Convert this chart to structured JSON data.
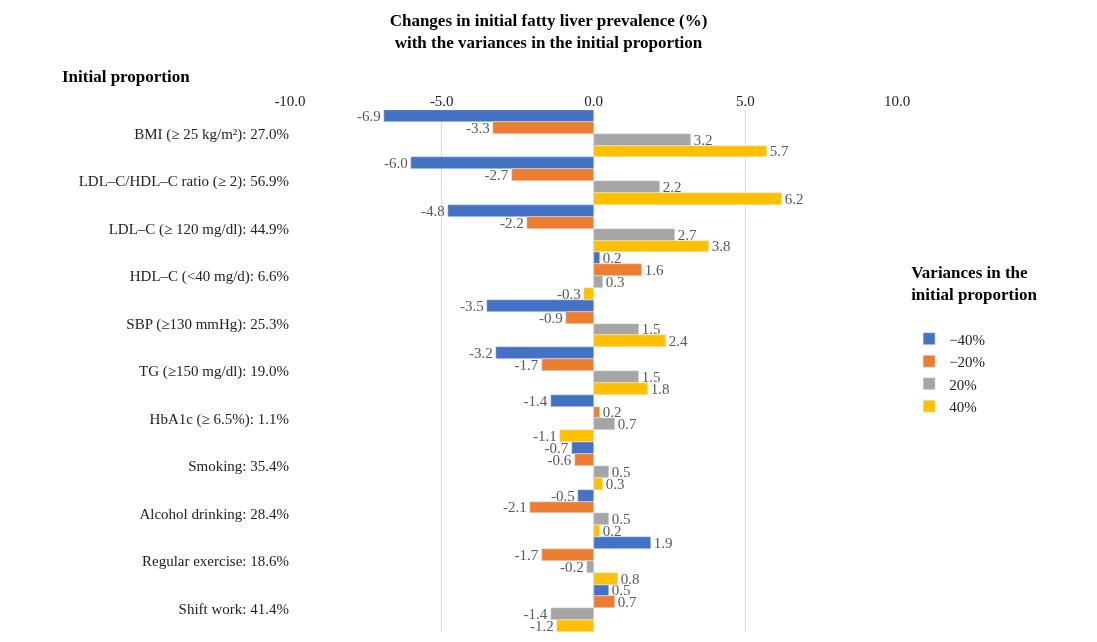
{
  "chart_data": {
    "type": "bar",
    "orientation": "horizontal",
    "title": "Changes in initial fatty liver prevalence (%)\nwith the variances in the initial proportion",
    "ylabel": "Initial proportion",
    "legend_title": "Variances in the\ninitial proportion",
    "categories": [
      "BMI (≥ 25 kg/m²): 27.0%",
      "LDL–C/HDL–C ratio (≥ 2): 56.9%",
      "LDL–C (≥ 120 mg/dl): 44.9%",
      "HDL–C (<40 mg/d): 6.6%",
      "SBP (≥130 mmHg): 25.3%",
      "TG (≥150 mg/dl): 19.0%",
      "HbA1c (≥ 6.5%): 1.1%",
      "Smoking: 35.4%",
      "Alcohol drinking: 28.4%",
      "Regular exercise: 18.6%",
      "Shift work: 41.4%"
    ],
    "series": [
      {
        "name": "−40%",
        "color": "#4472c4",
        "values": [
          -6.9,
          -6.0,
          -4.8,
          0.2,
          -3.5,
          -3.2,
          -1.4,
          -0.7,
          -0.5,
          1.9,
          0.5
        ],
        "value_labels": [
          "-6.9",
          "-6.0",
          "-4.8",
          "0.2",
          "-3.5",
          "-3.2",
          "-1.4",
          "-0.7",
          "-0.5",
          "1.9",
          "0.5"
        ]
      },
      {
        "name": "−20%",
        "color": "#ed7d31",
        "values": [
          -3.3,
          -2.7,
          -2.2,
          1.6,
          -0.9,
          -1.7,
          0.2,
          -0.6,
          -2.1,
          -1.7,
          0.7
        ],
        "value_labels": [
          "-3.3",
          "-2.7",
          "-2.2",
          "1.6",
          "-0.9",
          "-1.7",
          "0.2",
          "-0.6",
          "-2.1",
          "-1.7",
          "0.7"
        ]
      },
      {
        "name": "20%",
        "color": "#a5a5a5",
        "values": [
          3.2,
          2.2,
          2.7,
          0.3,
          1.5,
          1.5,
          0.7,
          0.5,
          0.5,
          -0.2,
          -1.4
        ],
        "value_labels": [
          "3.2",
          "2.2",
          "2.7",
          "0.3",
          "1.5",
          "1.5",
          "0.7",
          "0.5",
          "0.5",
          "-0.2",
          "-1.4"
        ]
      },
      {
        "name": "40%",
        "color": "#ffc000",
        "values": [
          5.7,
          6.2,
          3.8,
          -0.3,
          2.4,
          1.8,
          -1.1,
          0.3,
          0.2,
          0.8,
          -1.2
        ],
        "value_labels": [
          "5.7",
          "6.2",
          "3.8",
          "-0.3",
          "2.4",
          "1.8",
          "-1.1",
          "0.3",
          "0.2",
          "0.8",
          "-1.2"
        ]
      }
    ],
    "xlim": [
      -10,
      10
    ],
    "xticks": [
      {
        "value": -10,
        "label": "-10.0"
      },
      {
        "value": -5,
        "label": "-5.0"
      },
      {
        "value": 0,
        "label": "0.0"
      },
      {
        "value": 5,
        "label": "5.0"
      },
      {
        "value": 10,
        "label": "10.0"
      }
    ],
    "grid": "x",
    "legend": "right"
  }
}
